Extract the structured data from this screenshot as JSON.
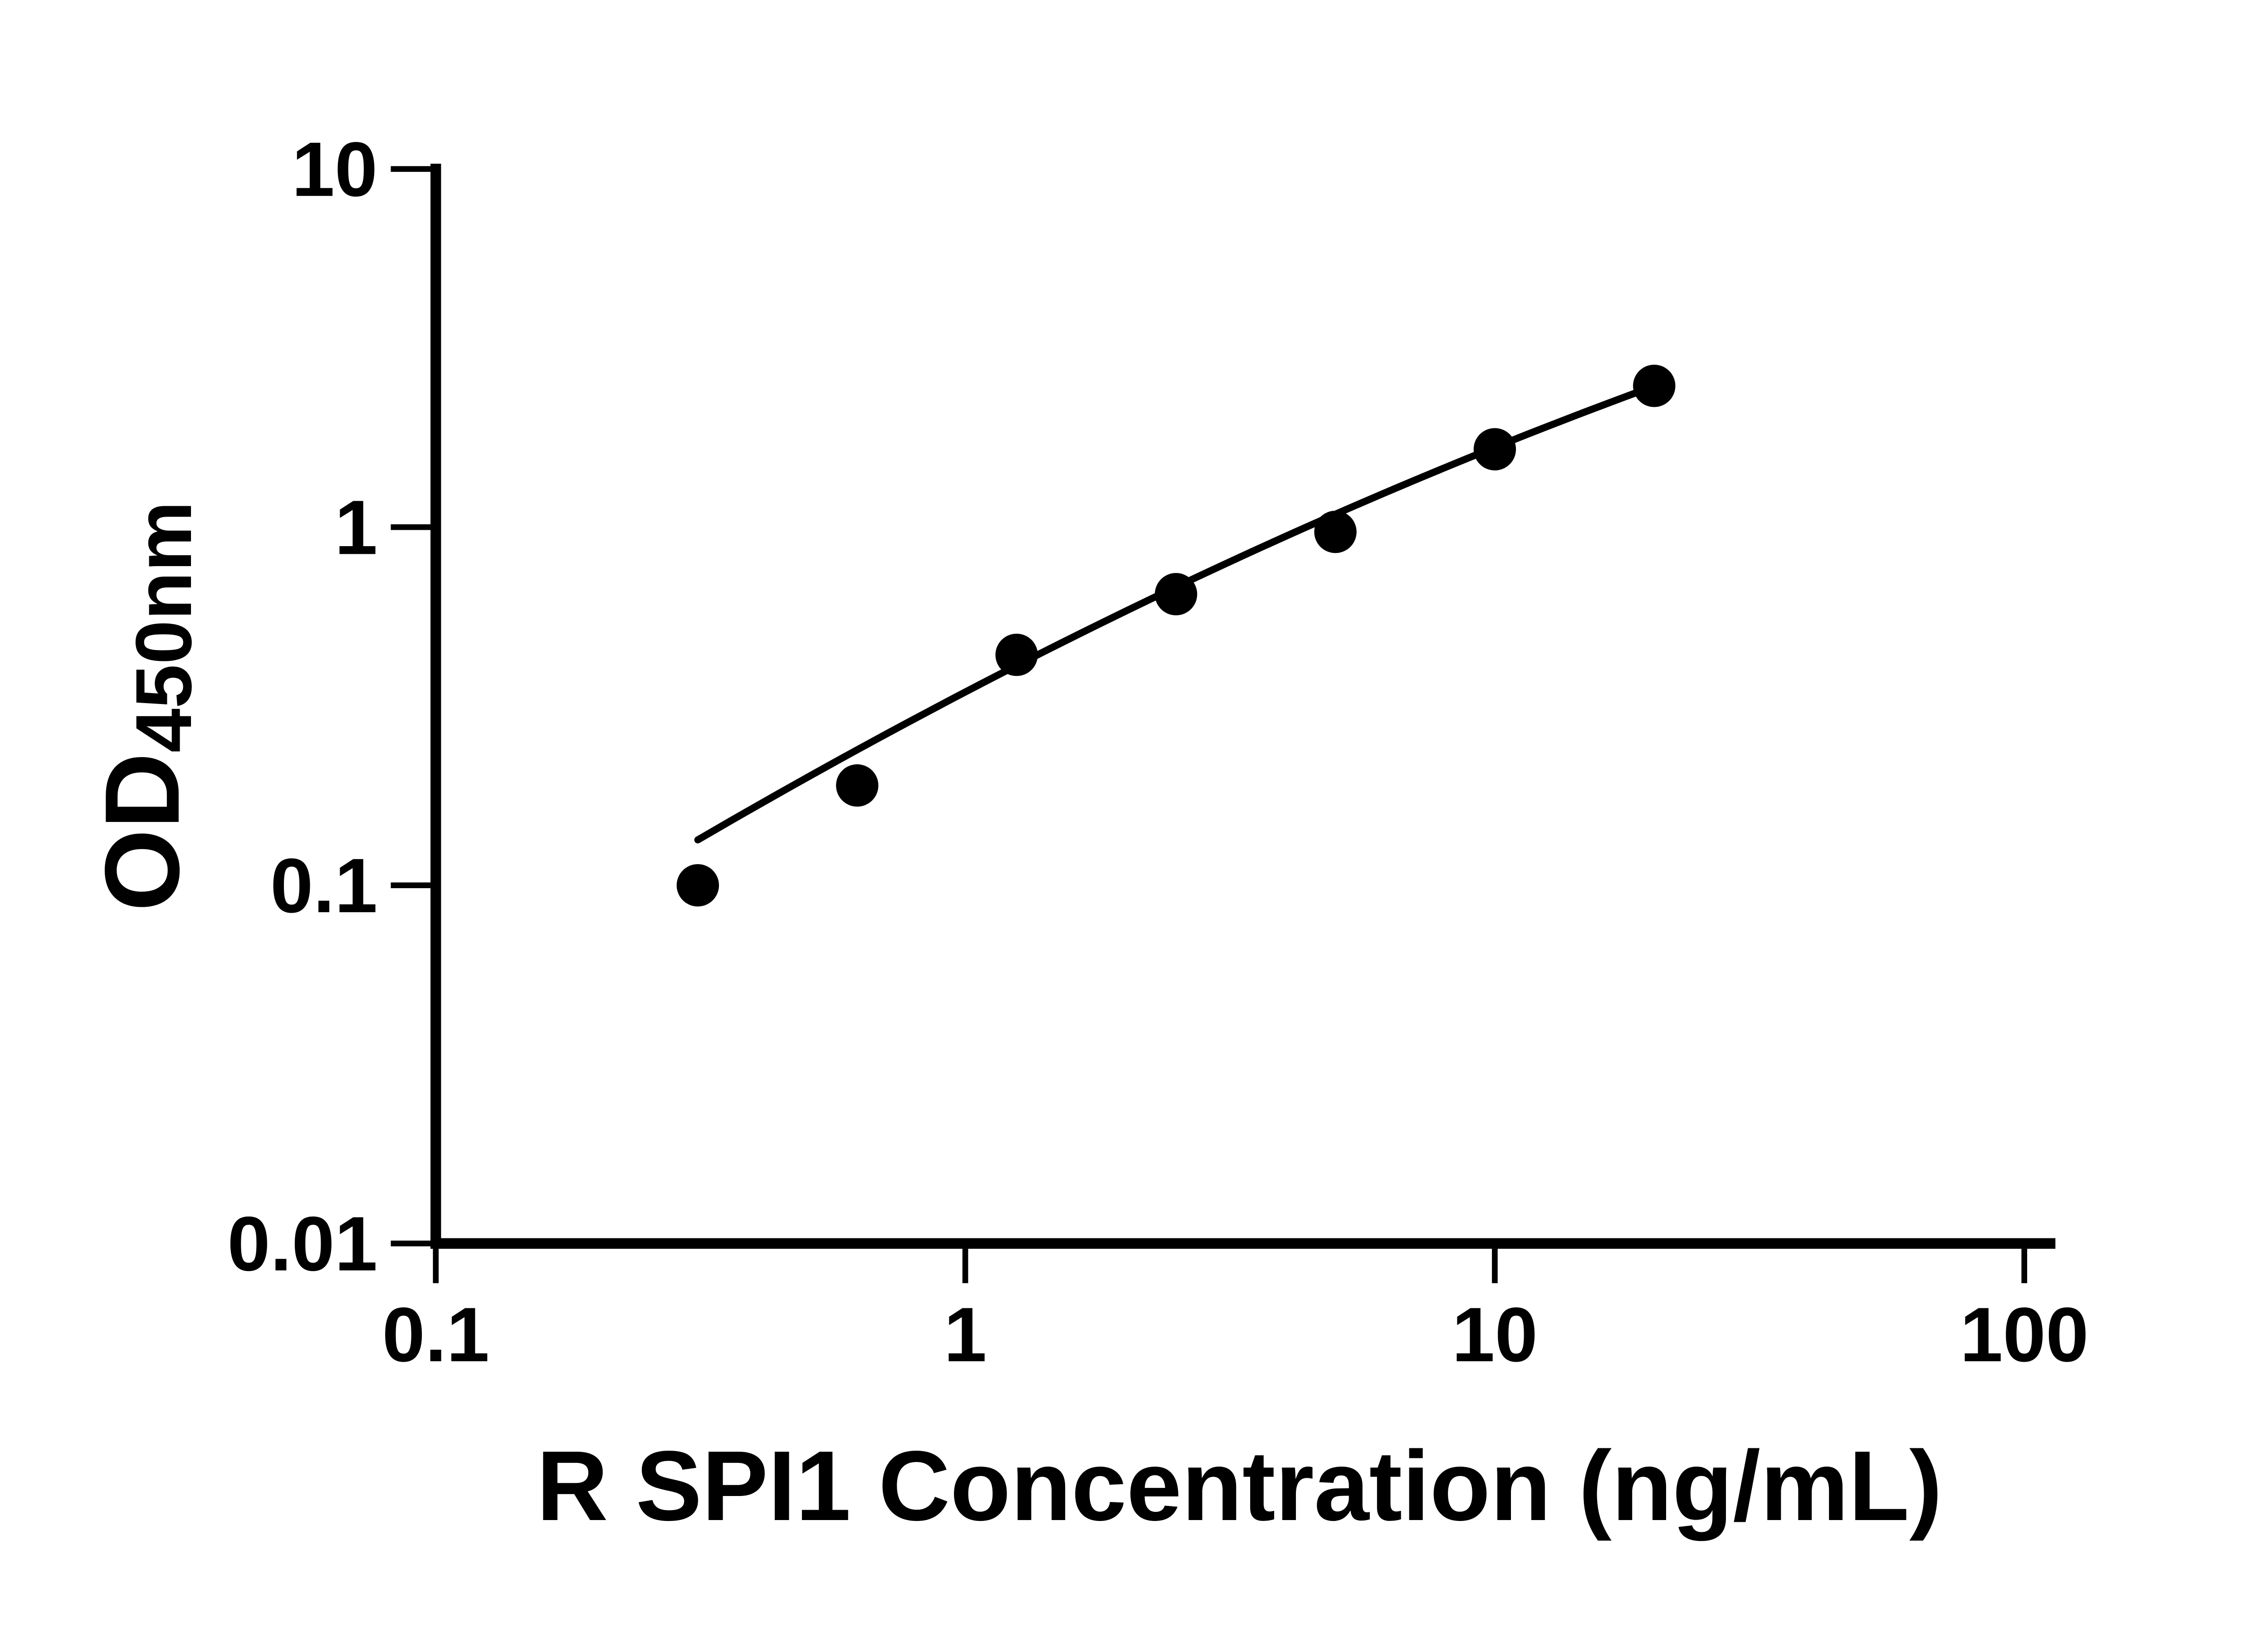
{
  "figure": {
    "background_color": "#ffffff",
    "foreground_color": "#000000"
  },
  "chart_data": {
    "type": "scatter",
    "title": "",
    "xlabel": "R SPI1 Concentration (ng/mL)",
    "ylabel": "OD",
    "ylabel_subscript": "450nm",
    "x_scale": "log",
    "y_scale": "log",
    "xlim": [
      0.1,
      100
    ],
    "ylim": [
      0.01,
      10
    ],
    "x_tick_labels": [
      "0.1",
      "1",
      "10",
      "100"
    ],
    "y_tick_labels": [
      "0.01",
      "0.1",
      "1",
      "10"
    ],
    "grid": false,
    "legend": false,
    "marker_color": "#000000",
    "curve_color": "#000000",
    "series": [
      {
        "name": "standard-points",
        "type": "scatter",
        "marker": "circle",
        "x": [
          0.3125,
          0.625,
          1.25,
          2.5,
          5,
          10,
          20
        ],
        "y": [
          0.1,
          0.19,
          0.44,
          0.65,
          0.97,
          1.65,
          2.48
        ]
      },
      {
        "name": "fitted-curve",
        "type": "line",
        "fit": {
          "kind": "quadratic_loglog",
          "u0": 0.398,
          "v0": -0.167,
          "slope": 0.7015,
          "curvature": -0.0891,
          "u_min": -0.5051,
          "u_max": 1.30103
        }
      }
    ]
  }
}
